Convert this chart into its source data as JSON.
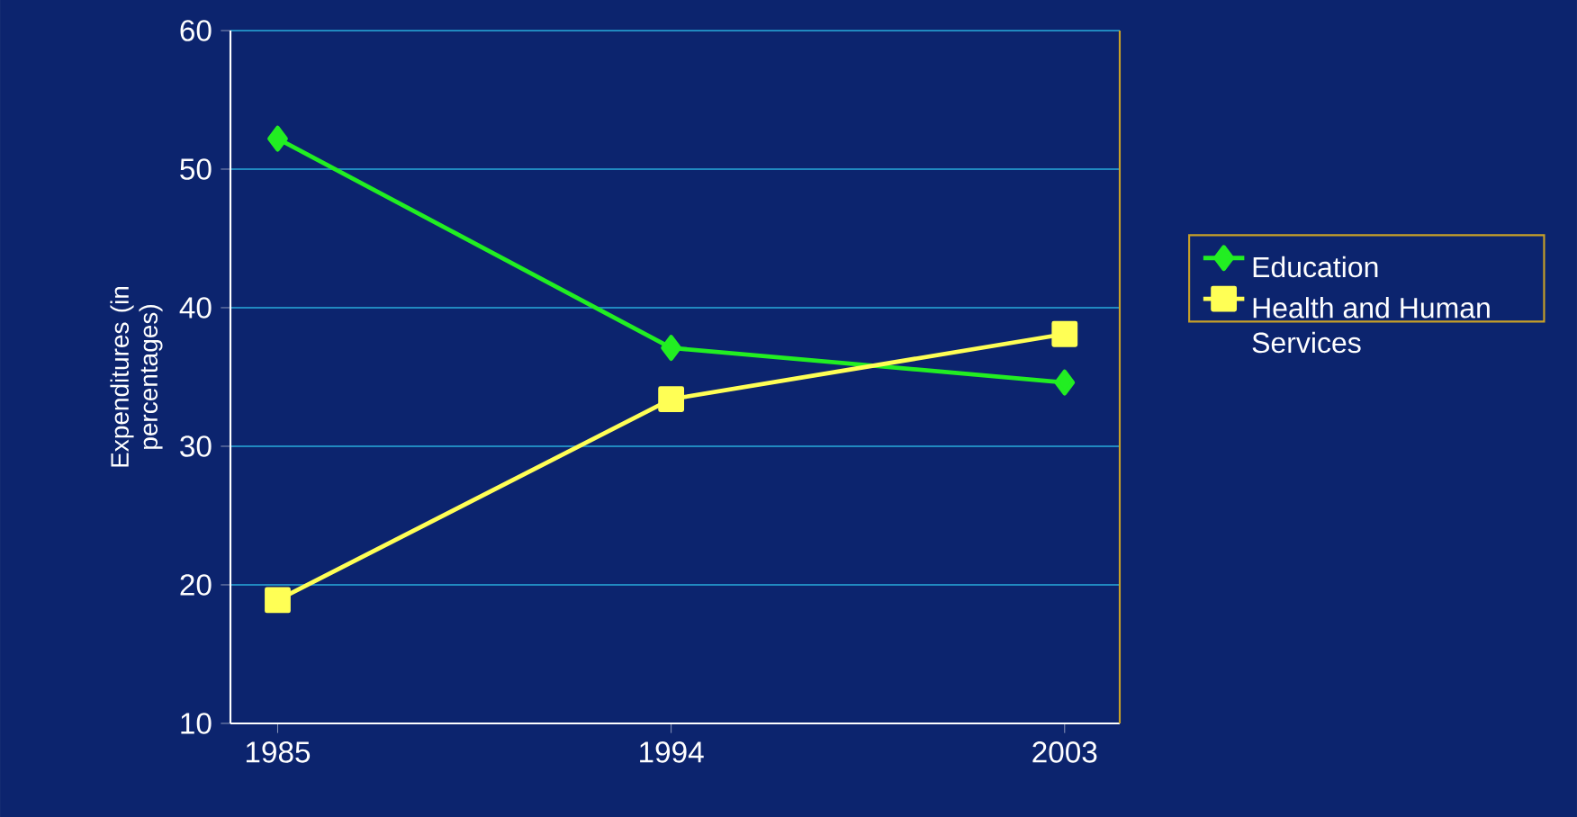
{
  "chart_data": {
    "type": "line",
    "ylabel": "Expenditures (in percentages)",
    "categories": [
      "1985",
      "1994",
      "2003"
    ],
    "series": [
      {
        "name": "Education",
        "color": "#22ee22",
        "marker": "diamond",
        "values": [
          52.2,
          37.1,
          34.6
        ]
      },
      {
        "name": "Health and Human Services",
        "color": "#ffff55",
        "marker": "square",
        "values": [
          18.9,
          33.4,
          38.1
        ]
      }
    ],
    "ylim": [
      10,
      60
    ],
    "yticks": [
      10,
      20,
      30,
      40,
      50,
      60
    ],
    "grid": "y",
    "legend": "right",
    "line_style": "solid"
  }
}
